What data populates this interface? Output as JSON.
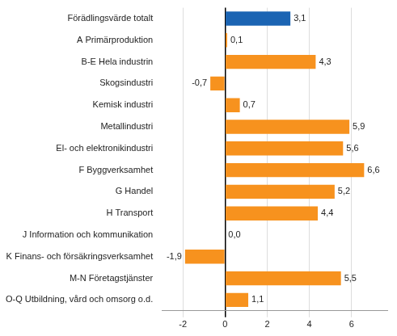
{
  "chart_data": {
    "type": "bar",
    "orientation": "horizontal",
    "categories": [
      "Förädlingsvärde totalt",
      "A Primärproduktion",
      "B-E Hela industrin",
      "Skogsindustri",
      "Kemisk industri",
      "Metallindustri",
      "El- och elektronikindustri",
      "F Byggverksamhet",
      "G Handel",
      "H Transport",
      "J Information och kommunikation",
      "K Finans- och försäkringsverksamhet",
      "M-N Företagstjänster",
      "O-Q Utbildning, vård och omsorg o.d."
    ],
    "values": [
      3.1,
      0.1,
      4.3,
      -0.7,
      0.7,
      5.9,
      5.6,
      6.6,
      5.2,
      4.4,
      0.0,
      -1.9,
      5.5,
      1.1
    ],
    "value_labels": [
      "3,1",
      "0,1",
      "4,3",
      "-0,7",
      "0,7",
      "5,9",
      "5,6",
      "6,6",
      "5,2",
      "4,4",
      "0,0",
      "-1,9",
      "5,5",
      "1,1"
    ],
    "colors": [
      "#1b64b3",
      "#f7921e",
      "#f7921e",
      "#f7921e",
      "#f7921e",
      "#f7921e",
      "#f7921e",
      "#f7921e",
      "#f7921e",
      "#f7921e",
      "#f7921e",
      "#f7921e",
      "#f7921e",
      "#f7921e"
    ],
    "xlim": [
      -3,
      7.7
    ],
    "xticks": [
      -2,
      0,
      2,
      4,
      6
    ],
    "grid": true,
    "data_labels": true
  }
}
